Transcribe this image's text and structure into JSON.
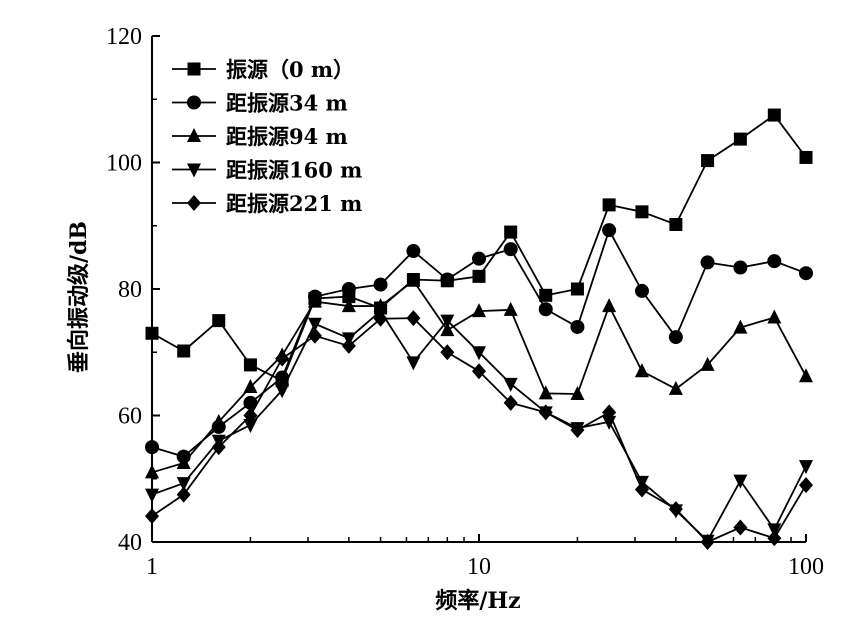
{
  "chart_data": {
    "type": "line",
    "xlabel": "频率/Hz",
    "ylabel": "垂向振动级/dB",
    "x_scale": "log",
    "xlim": [
      1,
      100
    ],
    "ylim": [
      40,
      120
    ],
    "x_ticks": [
      1,
      10,
      100
    ],
    "x_tick_labels": [
      "1",
      "10",
      "100"
    ],
    "y_ticks": [
      40,
      60,
      80,
      100,
      120
    ],
    "y_tick_labels": [
      "40",
      "60",
      "80",
      "100",
      "120"
    ],
    "grid": false,
    "legend_position": "top-left",
    "x": [
      1,
      1.25,
      1.6,
      2,
      2.5,
      3.15,
      4,
      5,
      6.3,
      8,
      10,
      12.5,
      16,
      20,
      25,
      31.5,
      40,
      50,
      63,
      80,
      100
    ],
    "series": [
      {
        "name": "振源（0 m）",
        "marker": "square",
        "values": [
          73,
          70.2,
          75,
          68,
          65.5,
          78.5,
          78.8,
          77,
          81.5,
          81.3,
          82,
          89,
          79,
          80,
          93.3,
          92.2,
          90.2,
          100.3,
          103.7,
          107.5,
          100.8
        ]
      },
      {
        "name": "距振源34 m",
        "marker": "circle",
        "values": [
          55,
          53.5,
          58.2,
          62,
          66,
          78.8,
          80,
          80.7,
          86,
          81.5,
          84.8,
          86.3,
          76.8,
          74,
          89.3,
          79.7,
          72.4,
          84.2,
          83.4,
          84.4,
          82.5
        ]
      },
      {
        "name": "距振源94 m",
        "marker": "triangle-up",
        "values": [
          51,
          52.5,
          59,
          64.5,
          69.5,
          78,
          77.3,
          77.3,
          81.3,
          73.5,
          76.5,
          76.7,
          63.5,
          63.4,
          77.3,
          67,
          64.2,
          68,
          73.9,
          75.5,
          66.2
        ]
      },
      {
        "name": "距振源160 m",
        "marker": "triangle-down",
        "values": [
          47.5,
          49.3,
          56,
          58.5,
          64,
          74.5,
          72.2,
          76.5,
          68.4,
          75,
          70,
          65,
          60.5,
          58,
          59,
          49.5,
          45,
          40.2,
          49.7,
          42,
          52
        ]
      },
      {
        "name": "距振源221 m",
        "marker": "diamond",
        "values": [
          44.1,
          47.5,
          55,
          60,
          69,
          72.6,
          71,
          75.3,
          75.4,
          70,
          67,
          62,
          60.5,
          57.7,
          60.5,
          48.3,
          45.2,
          40,
          42.3,
          40.6,
          49
        ]
      }
    ],
    "colors": {
      "line": "#000000",
      "marker": "#000000",
      "background": "#ffffff"
    }
  }
}
